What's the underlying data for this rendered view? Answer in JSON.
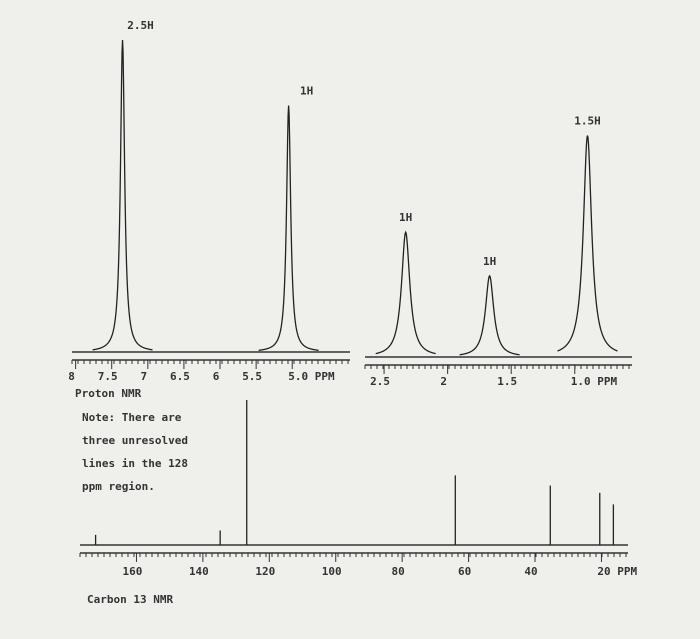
{
  "chart_data": [
    {
      "type": "spectrum",
      "label": "Proton NMR",
      "xlim": [
        8.05,
        4.2
      ],
      "ylim": [
        0,
        100
      ],
      "xticks": [
        8.0,
        7.5,
        7.0,
        6.5,
        6.0,
        5.5,
        {
          "value": 5.0,
          "label": "5.0 PPM"
        }
      ],
      "peaks": [
        {
          "position": 7.35,
          "height": 100,
          "label": "2.5H"
        },
        {
          "position": 5.05,
          "height": 79,
          "label": "1H"
        }
      ]
    },
    {
      "type": "spectrum",
      "xlim": [
        2.65,
        0.55
      ],
      "ylim": [
        0,
        100
      ],
      "xticks": [
        2.5,
        2.0,
        1.5,
        {
          "value": 1.0,
          "label": "1.0 PPM"
        }
      ],
      "peaks": [
        {
          "position": 2.33,
          "height": 40,
          "label": "1H"
        },
        {
          "position": 1.67,
          "height": 26,
          "label": "1H"
        },
        {
          "position": 0.9,
          "height": 71,
          "label": "1.5H"
        }
      ]
    },
    {
      "type": "spectrum",
      "label": "Carbon 13 NMR",
      "xlim": [
        177,
        12
      ],
      "ylim": [
        0,
        100
      ],
      "annotation": [
        "Note: There are",
        "three unresolved",
        "lines in the 128",
        "ppm region."
      ],
      "xticks": [
        160,
        140,
        120,
        100,
        80,
        60,
        40,
        {
          "value": 20,
          "label": "20 PPM"
        }
      ],
      "peaks": [
        {
          "position": 172.3,
          "height": 7
        },
        {
          "position": 134.8,
          "height": 10
        },
        {
          "position": 126.8,
          "height": 100
        },
        {
          "position": 64,
          "height": 48
        },
        {
          "position": 35.4,
          "height": 41
        },
        {
          "position": 20.5,
          "height": 36
        },
        {
          "position": 16.4,
          "height": 28
        }
      ]
    }
  ]
}
